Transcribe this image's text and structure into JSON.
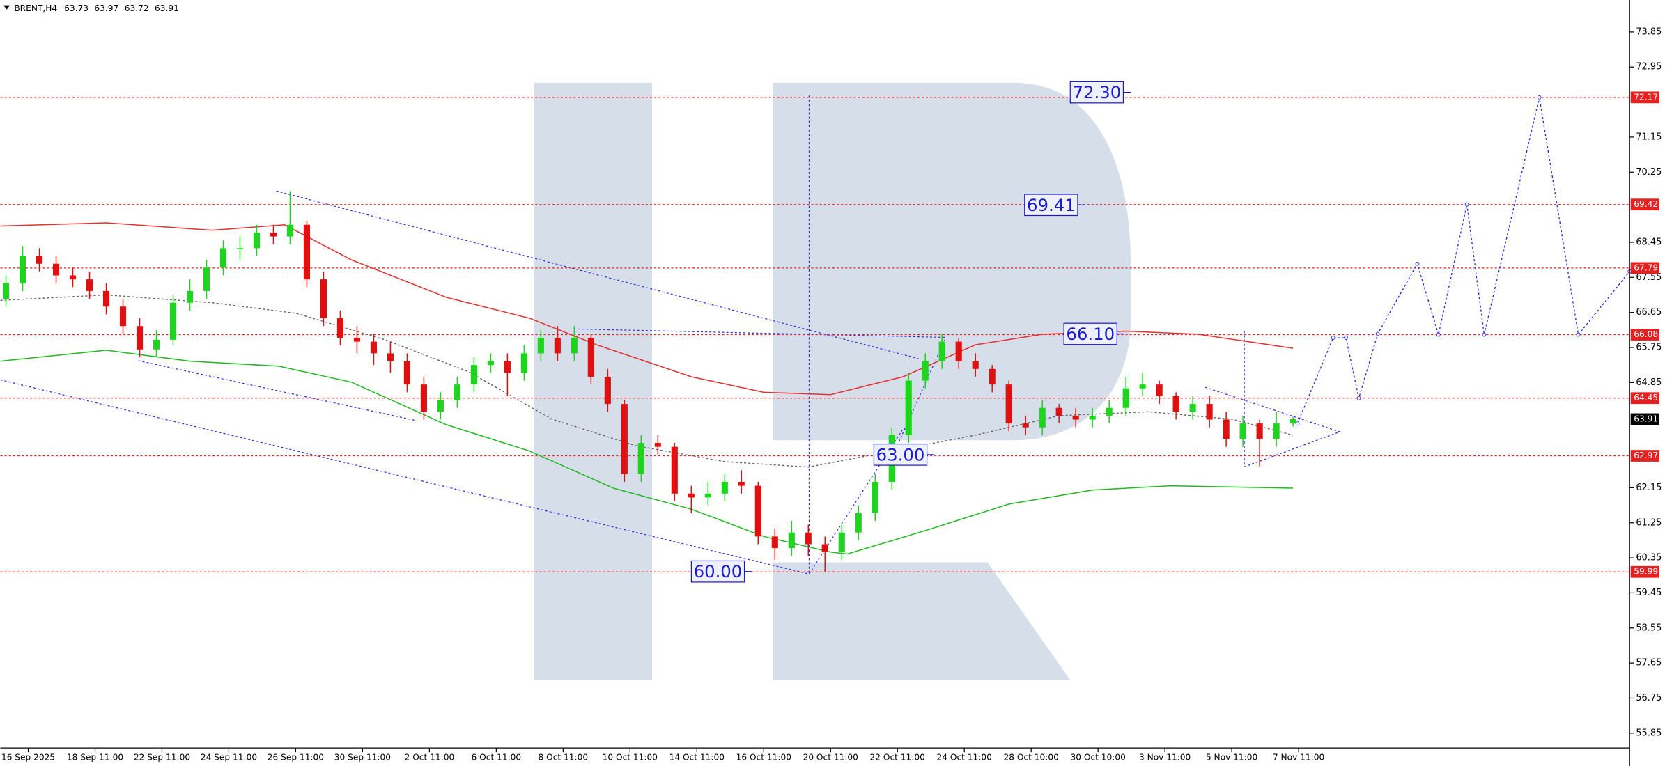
{
  "chart_data": {
    "type": "candlestick",
    "title": "BRENT,H4",
    "header_values": [
      63.73,
      63.97,
      63.72,
      63.91
    ],
    "x": [
      1,
      4,
      7,
      10,
      13,
      16,
      19,
      22,
      25,
      28,
      31,
      34,
      37,
      40,
      43,
      46,
      49,
      52,
      55,
      58,
      61,
      64,
      67,
      70,
      73,
      76,
      79,
      82,
      85,
      88,
      91,
      94,
      97,
      100,
      103,
      106,
      109,
      112,
      115,
      118,
      121,
      124,
      127,
      130,
      133,
      136,
      139,
      142,
      145,
      148,
      151,
      154,
      157,
      160,
      163,
      166,
      169,
      172,
      175,
      178,
      181,
      184,
      187,
      190,
      193,
      196,
      199,
      202,
      205,
      208,
      211,
      214,
      217,
      220,
      223,
      226,
      229,
      232
    ],
    "open": [
      67.0,
      67.4,
      68.1,
      67.9,
      67.6,
      67.5,
      67.2,
      66.8,
      66.3,
      65.7,
      65.95,
      66.9,
      67.2,
      67.8,
      68.3,
      68.3,
      68.7,
      68.6,
      68.9,
      67.5,
      66.5,
      66.0,
      65.9,
      65.6,
      65.4,
      64.8,
      64.1,
      64.4,
      64.8,
      65.3,
      65.4,
      65.1,
      65.6,
      66.0,
      65.6,
      66.0,
      65.0,
      64.3,
      62.5,
      63.3,
      63.2,
      62.0,
      61.9,
      62.0,
      62.3,
      62.2,
      60.9,
      60.6,
      61.0,
      60.7,
      60.5,
      61.0,
      61.5,
      62.3,
      63.5,
      64.9,
      65.4,
      65.9,
      65.4,
      65.2,
      64.8,
      63.8,
      63.7,
      64.2,
      64.0,
      63.9,
      64.0,
      64.2,
      64.7,
      64.8,
      64.5,
      64.1,
      64.3,
      63.9,
      63.4,
      63.8,
      63.4,
      63.8
    ],
    "high": [
      67.6,
      68.35,
      68.3,
      68.1,
      67.8,
      67.7,
      67.4,
      67.0,
      66.5,
      66.2,
      67.1,
      67.5,
      68.0,
      68.5,
      68.6,
      68.9,
      68.9,
      69.76,
      69.0,
      67.7,
      66.7,
      66.3,
      66.1,
      65.9,
      65.6,
      65.0,
      64.6,
      65.0,
      65.5,
      65.6,
      65.6,
      65.8,
      66.2,
      66.3,
      66.3,
      66.1,
      65.2,
      64.4,
      63.5,
      63.5,
      63.3,
      62.2,
      62.3,
      62.5,
      62.6,
      62.3,
      61.1,
      61.3,
      61.2,
      60.9,
      61.2,
      61.7,
      62.5,
      63.7,
      65.1,
      65.6,
      66.1,
      66.0,
      65.6,
      65.3,
      64.9,
      64.0,
      64.4,
      64.3,
      64.2,
      64.2,
      64.4,
      65.0,
      65.1,
      64.9,
      64.6,
      64.5,
      64.5,
      64.1,
      64.0,
      63.9,
      64.1,
      63.97
    ],
    "low": [
      66.8,
      67.2,
      67.7,
      67.4,
      67.3,
      67.0,
      66.6,
      66.1,
      65.5,
      65.5,
      65.8,
      66.7,
      67.0,
      67.6,
      68.0,
      68.1,
      68.4,
      68.4,
      67.3,
      66.3,
      65.8,
      65.6,
      65.3,
      65.1,
      64.6,
      63.9,
      63.9,
      64.2,
      64.6,
      65.1,
      64.5,
      64.9,
      65.4,
      65.4,
      65.4,
      64.8,
      64.1,
      62.3,
      62.3,
      63.0,
      61.8,
      61.5,
      61.7,
      61.8,
      62.0,
      60.7,
      60.3,
      60.4,
      60.4,
      60.0,
      60.3,
      60.8,
      61.3,
      62.1,
      63.3,
      64.7,
      65.2,
      65.2,
      65.0,
      64.6,
      63.6,
      63.5,
      63.5,
      63.8,
      63.7,
      63.7,
      63.8,
      64.0,
      64.5,
      64.3,
      63.9,
      63.9,
      63.7,
      63.2,
      63.2,
      62.7,
      63.2,
      63.72
    ],
    "close": [
      67.4,
      68.1,
      67.9,
      67.6,
      67.5,
      67.2,
      66.8,
      66.3,
      65.7,
      65.95,
      66.9,
      67.2,
      67.8,
      68.3,
      68.3,
      68.7,
      68.6,
      68.9,
      67.5,
      66.5,
      66.0,
      65.9,
      65.6,
      65.4,
      64.8,
      64.1,
      64.4,
      64.8,
      65.3,
      65.4,
      65.1,
      65.6,
      66.0,
      65.6,
      66.0,
      65.0,
      64.3,
      62.5,
      63.3,
      63.2,
      62.0,
      61.9,
      62.0,
      62.3,
      62.2,
      60.9,
      60.6,
      61.0,
      60.7,
      60.5,
      61.0,
      61.5,
      62.3,
      63.5,
      64.9,
      65.4,
      65.9,
      65.4,
      65.2,
      64.8,
      63.8,
      63.7,
      64.2,
      64.0,
      63.9,
      64.0,
      64.2,
      64.7,
      64.8,
      64.5,
      64.1,
      64.3,
      63.9,
      63.4,
      63.8,
      63.4,
      63.8,
      63.91
    ],
    "up_color": "#1ed41e",
    "down_color": "#e01010",
    "series": [
      {
        "color": "#e53030",
        "dashed": false,
        "x": [
          0,
          19,
          38,
          51,
          63,
          80,
          95,
          107,
          124,
          137,
          149,
          162,
          175,
          187,
          202,
          215,
          232
        ],
        "values": [
          68.87,
          68.95,
          68.76,
          68.9,
          68.0,
          67.04,
          66.5,
          65.82,
          65.0,
          64.6,
          64.54,
          65.0,
          65.82,
          66.09,
          66.17,
          66.09,
          65.73
        ]
      },
      {
        "color": "#22b822",
        "dashed": false,
        "x": [
          0,
          19,
          34,
          50,
          63,
          80,
          95,
          110,
          124,
          137,
          149,
          152,
          166,
          181,
          196,
          210,
          232
        ],
        "values": [
          65.4,
          65.68,
          65.4,
          65.27,
          64.86,
          63.77,
          63.09,
          62.14,
          61.6,
          60.9,
          60.5,
          60.45,
          61.05,
          61.73,
          62.09,
          62.2,
          62.14
        ]
      },
      {
        "color": "#606060",
        "dashed": true,
        "x": [
          0,
          19,
          38,
          53,
          69,
          84,
          99,
          114,
          130,
          145,
          160,
          175,
          190,
          206,
          221,
          232
        ],
        "values": [
          66.96,
          67.1,
          66.9,
          66.63,
          65.95,
          65.13,
          63.91,
          63.23,
          62.82,
          62.68,
          63.09,
          63.5,
          64.0,
          64.1,
          63.91,
          63.5
        ]
      },
      {
        "color": "#2a2ae0",
        "dashed": true,
        "markers": true,
        "x": [
          232.8,
          239.2,
          241.5,
          243.8,
          247.2,
          254.3,
          258.1,
          263.2,
          266.3,
          276.2,
          283.2,
          292.4
        ],
        "values": [
          63.8,
          66.0,
          66.0,
          64.45,
          66.1,
          67.9,
          66.08,
          69.42,
          66.08,
          72.17,
          66.08,
          67.7
        ]
      }
    ],
    "levels": {
      "color": "#e62020",
      "values": [
        72.17,
        69.42,
        67.79,
        66.08,
        64.45,
        62.97,
        59.99
      ]
    },
    "current_price": 63.91,
    "annotations": [
      {
        "value": 72.3,
        "label": "72.30"
      },
      {
        "value": 69.41,
        "label": "69.41"
      },
      {
        "value": 66.1,
        "label": "66.10"
      },
      {
        "value": 63.0,
        "label": "63.00"
      },
      {
        "value": 60.0,
        "label": "60.00"
      }
    ],
    "xlim": [
      0,
      292.4
    ],
    "ylim": [
      55.47,
      74.67
    ],
    "yticks": [
      73.85,
      72.95,
      71.15,
      70.25,
      68.45,
      67.55,
      66.65,
      65.75,
      64.85,
      62.15,
      61.25,
      60.35,
      59.45,
      58.55,
      57.65,
      56.75,
      55.85
    ],
    "xticks": [
      {
        "value": 5,
        "label": "16 Sep 2025"
      },
      {
        "value": 17,
        "label": "18 Sep 11:00"
      },
      {
        "value": 29,
        "label": "22 Sep 11:00"
      },
      {
        "value": 41,
        "label": "24 Sep 11:00"
      },
      {
        "value": 53,
        "label": "26 Sep 11:00"
      },
      {
        "value": 65,
        "label": "30 Sep 11:00"
      },
      {
        "value": 77,
        "label": "2 Oct 11:00"
      },
      {
        "value": 89,
        "label": "6 Oct 11:00"
      },
      {
        "value": 101,
        "label": "8 Oct 11:00"
      },
      {
        "value": 113,
        "label": "10 Oct 11:00"
      },
      {
        "value": 125,
        "label": "14 Oct 11:00"
      },
      {
        "value": 137,
        "label": "16 Oct 11:00"
      },
      {
        "value": 149,
        "label": "20 Oct 11:00"
      },
      {
        "value": 161,
        "label": "22 Oct 11:00"
      },
      {
        "value": 173,
        "label": "24 Oct 11:00"
      },
      {
        "value": 185,
        "label": "28 Oct 10:00"
      },
      {
        "value": 197,
        "label": "30 Oct 10:00"
      },
      {
        "value": 209,
        "label": "3 Nov 11:00"
      },
      {
        "value": 221,
        "label": "5 Nov 11:00"
      },
      {
        "value": 233,
        "label": "7 Nov 11:00"
      }
    ]
  }
}
